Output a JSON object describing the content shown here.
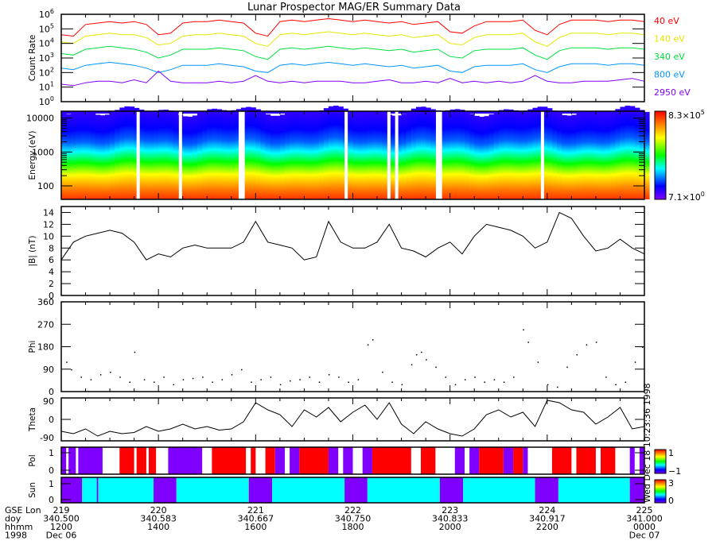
{
  "title": "Lunar Prospector MAG/ER Summary Data",
  "stamp": "Wed Dec 18 10:23:36 1998",
  "xaxis": {
    "row_labels": [
      "GSE Lon",
      "doy",
      "hhmm",
      "1998"
    ],
    "ticks": [
      {
        "hour": 0,
        "lon": "219",
        "doy": "340.500",
        "hhmm": "1200",
        "date": "Dec 06"
      },
      {
        "hour": 2,
        "lon": "220",
        "doy": "340.583",
        "hhmm": "1400",
        "date": ""
      },
      {
        "hour": 4,
        "lon": "221",
        "doy": "340.667",
        "hhmm": "1600",
        "date": ""
      },
      {
        "hour": 6,
        "lon": "222",
        "doy": "340.750",
        "hhmm": "1800",
        "date": ""
      },
      {
        "hour": 8,
        "lon": "223",
        "doy": "340.833",
        "hhmm": "2000",
        "date": ""
      },
      {
        "hour": 10,
        "lon": "224",
        "doy": "340.917",
        "hhmm": "2200",
        "date": ""
      },
      {
        "hour": 12,
        "lon": "225",
        "doy": "341.000",
        "hhmm": "0000",
        "date": "Dec 07"
      }
    ],
    "range_hours": [
      0,
      12
    ]
  },
  "chart_data": [
    {
      "type": "line",
      "name": "count-rate",
      "ylabel": "Count Rate",
      "yscale": "log",
      "ylim": [
        1,
        1000000
      ],
      "ytick_labels": [
        "10",
        "10",
        "10",
        "10",
        "10",
        "10",
        "10"
      ],
      "ytick_exps": [
        "0",
        "1",
        "2",
        "3",
        "4",
        "5",
        "6"
      ],
      "x_step_hours": 0.25,
      "series": [
        {
          "name": "40 eV",
          "color": "#ff0000",
          "log10": [
            4.6,
            4.5,
            5.3,
            5.4,
            5.5,
            5.4,
            5.5,
            5.3,
            4.6,
            4.7,
            5.4,
            5.5,
            5.5,
            5.6,
            5.5,
            5.4,
            4.7,
            4.5,
            5.5,
            5.6,
            5.5,
            5.6,
            5.7,
            5.6,
            5.5,
            5.6,
            5.5,
            5.4,
            5.5,
            5.3,
            5.4,
            5.5,
            4.8,
            4.7,
            5.2,
            5.5,
            5.5,
            5.5,
            5.6,
            4.9,
            4.6,
            5.3,
            5.6,
            5.6,
            5.6,
            5.5,
            5.6,
            5.6,
            5.5
          ]
        },
        {
          "name": "140 eV",
          "color": "#e6e600",
          "log10": [
            4.1,
            4.0,
            4.5,
            4.6,
            4.7,
            4.6,
            4.6,
            4.4,
            3.9,
            4.0,
            4.5,
            4.6,
            4.6,
            4.7,
            4.6,
            4.5,
            4.0,
            3.8,
            4.6,
            4.7,
            4.6,
            4.7,
            4.8,
            4.7,
            4.6,
            4.7,
            4.6,
            4.5,
            4.6,
            4.4,
            4.5,
            4.6,
            4.0,
            3.9,
            4.4,
            4.6,
            4.6,
            4.6,
            4.7,
            4.1,
            3.8,
            4.4,
            4.7,
            4.7,
            4.7,
            4.6,
            4.7,
            4.7,
            4.6
          ]
        },
        {
          "name": "340 eV",
          "color": "#00e040",
          "log10": [
            3.3,
            3.2,
            3.6,
            3.7,
            3.8,
            3.7,
            3.6,
            3.4,
            3.0,
            3.2,
            3.6,
            3.6,
            3.6,
            3.7,
            3.6,
            3.5,
            3.1,
            2.9,
            3.6,
            3.7,
            3.6,
            3.7,
            3.8,
            3.7,
            3.6,
            3.7,
            3.6,
            3.5,
            3.6,
            3.4,
            3.5,
            3.6,
            3.1,
            3.0,
            3.5,
            3.6,
            3.6,
            3.6,
            3.7,
            3.2,
            2.9,
            3.5,
            3.7,
            3.7,
            3.7,
            3.6,
            3.7,
            3.7,
            3.6
          ]
        },
        {
          "name": "800 eV",
          "color": "#0096ff",
          "log10": [
            2.3,
            2.2,
            2.5,
            2.6,
            2.7,
            2.6,
            2.5,
            2.3,
            2.0,
            2.2,
            2.5,
            2.5,
            2.5,
            2.6,
            2.5,
            2.4,
            2.1,
            2.0,
            2.5,
            2.6,
            2.5,
            2.6,
            2.7,
            2.6,
            2.5,
            2.6,
            2.5,
            2.4,
            2.5,
            2.3,
            2.4,
            2.5,
            2.1,
            2.0,
            2.4,
            2.5,
            2.5,
            2.5,
            2.6,
            2.2,
            2.0,
            2.4,
            2.6,
            2.6,
            2.6,
            2.5,
            2.6,
            2.6,
            2.5
          ]
        },
        {
          "name": "2950 eV",
          "color": "#8000ff",
          "log10": [
            1.2,
            1.1,
            1.3,
            1.4,
            1.4,
            1.3,
            1.5,
            1.3,
            2.1,
            1.4,
            1.3,
            1.3,
            1.3,
            1.4,
            1.3,
            1.4,
            1.8,
            1.4,
            1.3,
            1.4,
            1.3,
            1.4,
            1.4,
            1.4,
            1.3,
            1.3,
            1.4,
            1.5,
            1.3,
            1.3,
            1.4,
            1.3,
            1.6,
            1.3,
            1.4,
            1.3,
            1.4,
            1.3,
            1.4,
            1.8,
            1.4,
            1.3,
            1.3,
            1.4,
            1.4,
            1.4,
            1.5,
            1.6,
            1.4
          ]
        }
      ]
    },
    {
      "type": "heatmap",
      "name": "energy-spectrogram",
      "ylabel": "Energy (eV)",
      "yscale": "log",
      "ylim": [
        40,
        16000
      ],
      "ytick_labels": [
        "100",
        "1000",
        "10000"
      ],
      "colorbar": {
        "min_label": "7.1×10",
        "min_exp": "0",
        "max_label": "8.3×10",
        "max_exp": "5"
      },
      "data_gaps_hours": [
        1.55,
        2.42,
        3.65,
        3.71,
        5.83,
        6.71,
        6.87,
        7.71,
        7.77,
        9.87
      ]
    },
    {
      "type": "line",
      "name": "b-magnitude",
      "ylabel": "|B| (nT)",
      "ylim": [
        0,
        15
      ],
      "ytick_labels": [
        "0",
        "2",
        "4",
        "6",
        "8",
        "10",
        "12",
        "14"
      ],
      "x_step_hours": 0.25,
      "values": [
        6,
        9,
        10,
        10.5,
        11,
        10.5,
        9,
        6,
        7,
        6.5,
        8,
        8.5,
        8,
        8,
        8,
        9,
        12.5,
        9,
        8.5,
        8,
        6,
        6.5,
        12.5,
        9,
        8,
        8,
        9,
        12,
        8,
        7.5,
        6.5,
        8,
        9,
        7,
        10,
        12,
        11.5,
        11,
        10,
        8,
        9,
        14,
        13,
        10,
        7.5,
        8,
        9.5,
        8,
        7
      ]
    },
    {
      "type": "scatter",
      "name": "phi",
      "ylabel": "Phi",
      "ylim": [
        0,
        360
      ],
      "ytick_labels": [
        "0",
        "90",
        "180",
        "270",
        "360"
      ],
      "points": [
        [
          0.1,
          120
        ],
        [
          0.2,
          90
        ],
        [
          0.4,
          60
        ],
        [
          0.6,
          50
        ],
        [
          0.8,
          70
        ],
        [
          1.0,
          80
        ],
        [
          1.2,
          60
        ],
        [
          1.4,
          40
        ],
        [
          1.5,
          160
        ],
        [
          1.7,
          50
        ],
        [
          1.9,
          40
        ],
        [
          2.1,
          60
        ],
        [
          2.3,
          30
        ],
        [
          2.5,
          50
        ],
        [
          2.7,
          55
        ],
        [
          2.9,
          60
        ],
        [
          3.1,
          40
        ],
        [
          3.3,
          50
        ],
        [
          3.5,
          70
        ],
        [
          3.7,
          90
        ],
        [
          3.9,
          40
        ],
        [
          4.1,
          50
        ],
        [
          4.3,
          60
        ],
        [
          4.5,
          30
        ],
        [
          4.7,
          45
        ],
        [
          4.9,
          50
        ],
        [
          5.1,
          60
        ],
        [
          5.3,
          40
        ],
        [
          5.5,
          70
        ],
        [
          5.7,
          60
        ],
        [
          5.9,
          40
        ],
        [
          6.1,
          50
        ],
        [
          6.3,
          190
        ],
        [
          6.4,
          210
        ],
        [
          6.6,
          80
        ],
        [
          6.8,
          40
        ],
        [
          7.0,
          30
        ],
        [
          7.2,
          110
        ],
        [
          7.3,
          150
        ],
        [
          7.4,
          160
        ],
        [
          7.5,
          130
        ],
        [
          7.7,
          100
        ],
        [
          7.9,
          60
        ],
        [
          8.1,
          30
        ],
        [
          8.3,
          50
        ],
        [
          8.5,
          60
        ],
        [
          8.7,
          40
        ],
        [
          8.9,
          50
        ],
        [
          9.1,
          40
        ],
        [
          9.3,
          60
        ],
        [
          9.5,
          250
        ],
        [
          9.6,
          200
        ],
        [
          9.8,
          120
        ],
        [
          10.0,
          30
        ],
        [
          10.2,
          20
        ],
        [
          10.4,
          100
        ],
        [
          10.6,
          150
        ],
        [
          10.8,
          190
        ],
        [
          11.0,
          200
        ],
        [
          11.2,
          60
        ],
        [
          11.4,
          30
        ],
        [
          11.6,
          40
        ],
        [
          11.8,
          120
        ],
        [
          11.95,
          180
        ]
      ]
    },
    {
      "type": "line",
      "name": "theta",
      "ylabel": "Theta",
      "ylim": [
        -90,
        90
      ],
      "ytick_labels": [
        "-90",
        "0",
        "90"
      ],
      "x_step_hours": 0.25,
      "values": [
        -50,
        -60,
        -40,
        -70,
        -50,
        -60,
        -55,
        -30,
        -50,
        -40,
        -20,
        -40,
        -30,
        -45,
        -40,
        -10,
        70,
        40,
        20,
        -30,
        40,
        10,
        50,
        -10,
        30,
        60,
        0,
        70,
        -20,
        -60,
        -10,
        -40,
        -60,
        -70,
        -40,
        20,
        40,
        10,
        30,
        -30,
        80,
        70,
        40,
        30,
        -20,
        10,
        50,
        -40,
        -30
      ]
    },
    {
      "type": "heatmap",
      "name": "polarity",
      "ylabel": "Pol",
      "ylim": [
        0,
        1
      ],
      "ytick_labels": [
        "0",
        "1"
      ],
      "colorbar": {
        "min_label": "−1",
        "max_label": "1"
      },
      "segments": [
        [
          0,
          0.1,
          -1
        ],
        [
          0.1,
          0.15,
          null
        ],
        [
          0.15,
          0.3,
          -1
        ],
        [
          0.3,
          0.35,
          null
        ],
        [
          0.35,
          0.85,
          -1
        ],
        [
          0.85,
          1.2,
          null
        ],
        [
          1.2,
          1.5,
          1
        ],
        [
          1.5,
          1.55,
          null
        ],
        [
          1.55,
          1.75,
          1
        ],
        [
          1.75,
          1.8,
          null
        ],
        [
          1.8,
          1.95,
          1
        ],
        [
          1.95,
          2.2,
          null
        ],
        [
          2.2,
          2.9,
          -1
        ],
        [
          2.9,
          3.1,
          null
        ],
        [
          3.1,
          3.8,
          1
        ],
        [
          3.8,
          3.9,
          null
        ],
        [
          3.9,
          4.0,
          1
        ],
        [
          4.0,
          4.2,
          null
        ],
        [
          4.2,
          4.4,
          1
        ],
        [
          4.4,
          4.6,
          -1
        ],
        [
          4.6,
          4.7,
          null
        ],
        [
          4.7,
          4.9,
          -1
        ],
        [
          4.9,
          5.5,
          1
        ],
        [
          5.5,
          5.7,
          -1
        ],
        [
          5.7,
          5.8,
          null
        ],
        [
          5.8,
          6.0,
          -1
        ],
        [
          6.0,
          6.2,
          null
        ],
        [
          6.2,
          6.4,
          -1
        ],
        [
          6.4,
          7.2,
          1
        ],
        [
          7.2,
          7.4,
          null
        ],
        [
          7.4,
          7.7,
          1
        ],
        [
          7.7,
          8.1,
          null
        ],
        [
          8.1,
          8.3,
          -1
        ],
        [
          8.3,
          8.4,
          null
        ],
        [
          8.4,
          8.6,
          -1
        ],
        [
          8.6,
          9.1,
          1
        ],
        [
          9.1,
          9.3,
          -1
        ],
        [
          9.3,
          9.5,
          1
        ],
        [
          9.5,
          9.6,
          -1
        ],
        [
          9.6,
          9.7,
          null
        ],
        [
          9.7,
          10.1,
          null
        ],
        [
          10.1,
          10.5,
          1
        ],
        [
          10.5,
          10.6,
          null
        ],
        [
          10.6,
          11.0,
          1
        ],
        [
          11.0,
          11.1,
          null
        ],
        [
          11.1,
          11.4,
          1
        ],
        [
          11.4,
          11.7,
          null
        ],
        [
          11.7,
          11.8,
          -1
        ],
        [
          11.8,
          11.9,
          null
        ],
        [
          11.9,
          12,
          -1
        ]
      ]
    },
    {
      "type": "heatmap",
      "name": "sun",
      "ylabel": "Sun",
      "ylim": [
        0,
        1
      ],
      "ytick_labels": [
        "0",
        "1"
      ],
      "colorbar": {
        "min_label": "0",
        "max_label": "3"
      },
      "segments": [
        [
          0,
          0.43,
          0
        ],
        [
          0.43,
          0.73,
          1
        ],
        [
          0.73,
          0.76,
          0
        ],
        [
          0.76,
          1.9,
          1
        ],
        [
          1.9,
          2.37,
          0
        ],
        [
          2.37,
          3.86,
          1
        ],
        [
          3.86,
          4.34,
          0
        ],
        [
          4.34,
          5.83,
          1
        ],
        [
          5.83,
          6.3,
          0
        ],
        [
          6.3,
          7.79,
          1
        ],
        [
          7.79,
          8.27,
          0
        ],
        [
          8.27,
          9.75,
          1
        ],
        [
          9.75,
          10.23,
          0
        ],
        [
          10.23,
          11.7,
          1
        ],
        [
          11.7,
          12,
          0
        ]
      ]
    }
  ],
  "colors": {
    "pol_pos": "#ff0000",
    "pol_neg": "#8000ff",
    "sun_0": "#8000ff",
    "sun_1": "#00ffff"
  }
}
